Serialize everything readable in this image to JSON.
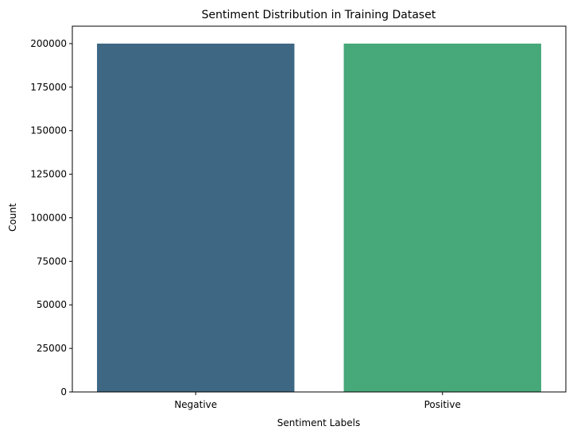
{
  "chart_data": {
    "type": "bar",
    "title": "Sentiment Distribution in Training Dataset",
    "xlabel": "Sentiment Labels",
    "ylabel": "Count",
    "categories": [
      "Negative",
      "Positive"
    ],
    "values": [
      200000,
      200000
    ],
    "colors": [
      "#3e6784",
      "#47a87a"
    ],
    "ylim": [
      0,
      210000
    ],
    "yticks": [
      0,
      25000,
      50000,
      75000,
      100000,
      125000,
      150000,
      175000,
      200000
    ],
    "grid": false,
    "legend": "none"
  }
}
